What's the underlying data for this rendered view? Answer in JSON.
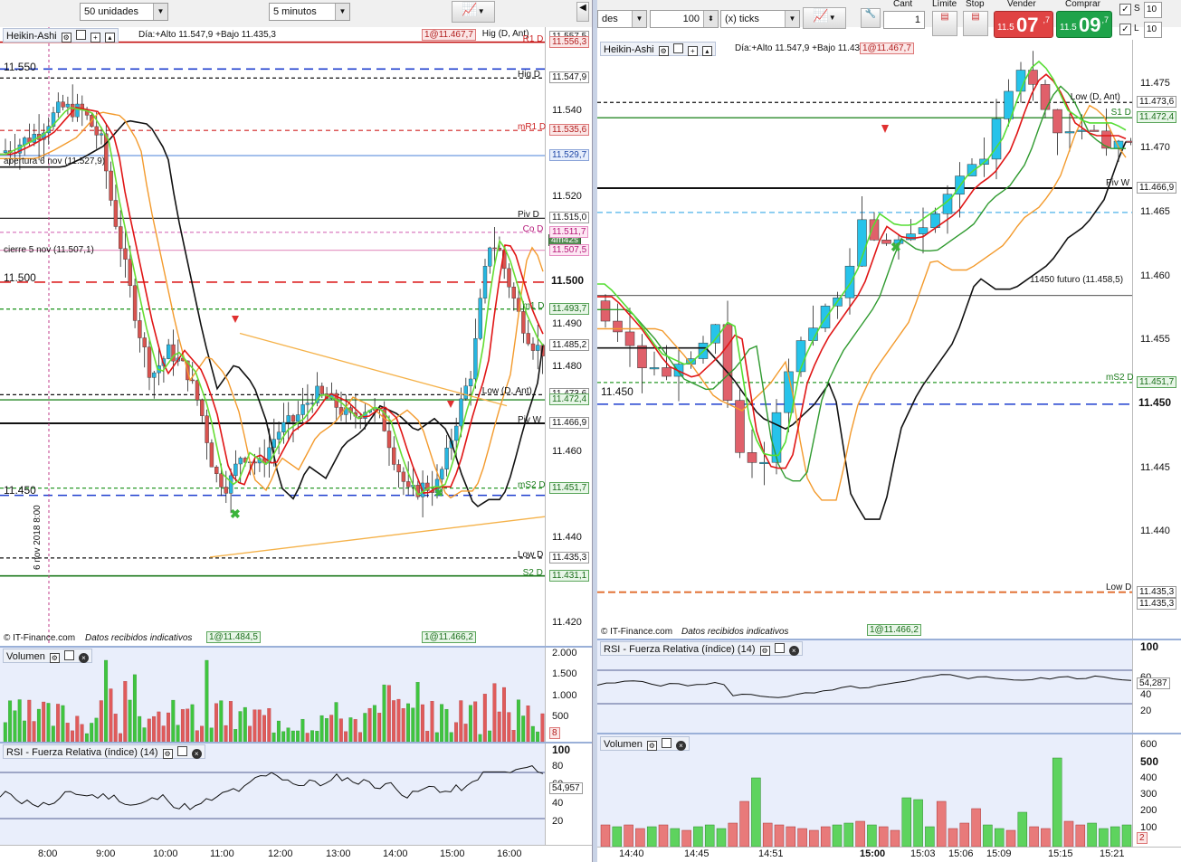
{
  "toolbar": {
    "units_select": "50 unidades",
    "interval_select": "5 minutos",
    "right_units_select": "des",
    "ticks_value": "100",
    "ticks_select": "(x) ticks",
    "cant_label": "Cant",
    "cant_value": "1",
    "limite_label": "Límite",
    "stop_label": "Stop",
    "vender_label": "Vender",
    "comprar_label": "Comprar",
    "sell_small": "11.5",
    "sell_big": "07",
    "sell_sup": ",7",
    "buy_small": "11.5",
    "buy_big": "09",
    "buy_sup": ",7",
    "s_label": "S",
    "l_label": "L",
    "s_value": "10",
    "l_value": "10"
  },
  "left_chart": {
    "title": "Heikin-Ashi",
    "info": "Día:+Alto 11.547,9 +Bajo 11.435,3",
    "header_tag": "1@11.467,7",
    "big_level_top": "11.550",
    "big_level_mid": "11.500",
    "big_level_low": "11.450",
    "apertura": "apertura 6 nov (11.527,9)",
    "cierre": "cierre 5 nov (11.507,1)",
    "countdown": "4m42s",
    "vertical_date": "6 nov 2018 8:00",
    "copyright": "© IT-Finance.com",
    "datos": "Datos recibidos indicativos",
    "bottom_tag_1": "1@11.484,5",
    "bottom_tag_2": "1@11.466,2",
    "level_labels": [
      {
        "text": "Hig (D, Ant)",
        "price": "11.557,5",
        "cls": "plain"
      },
      {
        "text": "R1 D",
        "price": "11.556,3",
        "cls": "red"
      },
      {
        "text": "Hig D",
        "price": "11.547,9",
        "cls": "plain"
      },
      {
        "text": "mR1 D",
        "price": "11.535,6",
        "cls": "red"
      },
      {
        "text": "",
        "price": "11.529,7",
        "cls": "blue"
      },
      {
        "text": "Piv D",
        "price": "11.515,0",
        "cls": "plain"
      },
      {
        "text": "Co D",
        "price": "11.511,7",
        "cls": "pink"
      },
      {
        "text": "",
        "price": "11.507,5",
        "cls": "pink"
      },
      {
        "text": "",
        "price": "11.500",
        "cls": "plain"
      },
      {
        "text": "m1 D",
        "price": "11.493,7",
        "cls": "green"
      },
      {
        "text": "",
        "price": "11.485,2",
        "cls": "plain"
      },
      {
        "text": "Low (D, Ant)",
        "price": "11.473,6",
        "cls": "plain"
      },
      {
        "text": "",
        "price": "11.472,4",
        "cls": "green"
      },
      {
        "text": "Piv W",
        "price": "11.466,9",
        "cls": "plain"
      },
      {
        "text": "mS2 D",
        "price": "11.451,7",
        "cls": "green"
      },
      {
        "text": "",
        "price": "11.451,7",
        "cls": "green"
      },
      {
        "text": "Low D",
        "price": "11.435,3",
        "cls": "plain"
      },
      {
        "text": "S2 D",
        "price": "11.431,1",
        "cls": "green"
      }
    ],
    "y_ticks": [
      "11.540",
      "11.520",
      "11.490",
      "11.480",
      "11.460",
      "11.440",
      "11.420"
    ],
    "x_ticks": [
      "8:00",
      "9:00",
      "10:00",
      "11:00",
      "12:00",
      "13:00",
      "14:00",
      "15:00",
      "16:00"
    ],
    "volume_title": "Volumen",
    "volume_ticks": [
      "2.000",
      "1.500",
      "1.000",
      "500"
    ],
    "volume_tag": "8",
    "rsi_title": "RSI - Fuerza Relativa (índice) (14)",
    "rsi_ticks": [
      "100",
      "80",
      "60",
      "40",
      "20"
    ],
    "rsi_value": "54,957"
  },
  "right_chart": {
    "title": "Heikin-Ashi",
    "info": "Día:+Alto 11.547,9 +Bajo 11.435,3",
    "header_tag": "1@11.467,7",
    "big_level": "11.450",
    "futuro_label": "11450 futuro (11.458,5)",
    "copyright": "© IT-Finance.com",
    "datos": "Datos recibidos indicativos",
    "bottom_tag": "1@11.466,2",
    "level_labels": [
      {
        "text": "Low (D, Ant)",
        "price": "11.473,6",
        "cls": "plain"
      },
      {
        "text": "S1 D",
        "price": "11.472,4",
        "cls": "green"
      },
      {
        "text": "Piv W",
        "price": "11.466,9",
        "cls": "plain"
      },
      {
        "text": "mS2 D",
        "price": "11.451,7",
        "cls": "green"
      },
      {
        "text": "",
        "price": "11.451,7",
        "cls": "green"
      },
      {
        "text": "",
        "price": "11.450",
        "cls": "plain"
      },
      {
        "text": "Low D",
        "price": "11.435,3",
        "cls": "plain"
      },
      {
        "text": "",
        "price": "11.435,3",
        "cls": "plain"
      }
    ],
    "y_ticks": [
      "11.475",
      "11.470",
      "11.465",
      "11.460",
      "11.455",
      "11.445",
      "11.440"
    ],
    "x_ticks": [
      "14:40",
      "14:45",
      "14:51",
      "15:00",
      "15:03",
      "15:06",
      "15:09",
      "15:15",
      "15:21"
    ],
    "rsi_title": "RSI - Fuerza Relativa (índice) (14)",
    "rsi_ticks": [
      "100",
      "60",
      "40",
      "20"
    ],
    "rsi_value": "54,287",
    "volume_title": "Volumen",
    "volume_ticks": [
      "600",
      "500",
      "400",
      "300",
      "200",
      "100"
    ],
    "volume_tag": "2"
  }
}
